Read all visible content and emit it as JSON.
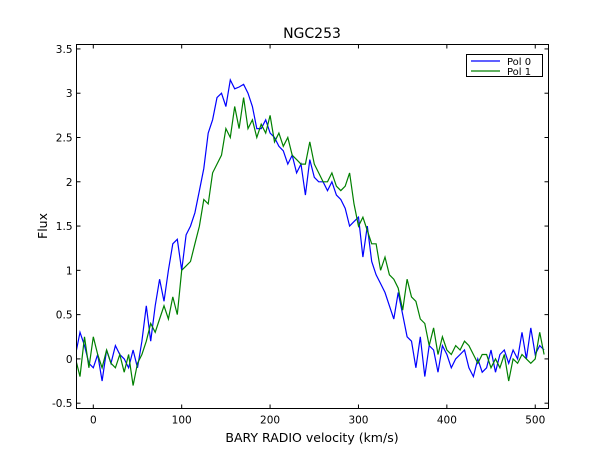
{
  "chart_data": {
    "type": "line",
    "title": "NGC253",
    "xlabel": "BARY RADIO velocity (km/s)",
    "ylabel": "Flux",
    "xlim": [
      -19,
      515
    ],
    "ylim": [
      -0.56,
      3.55
    ],
    "xticks": [
      0,
      100,
      200,
      300,
      400,
      500
    ],
    "xtick_labels": [
      "0",
      "100",
      "200",
      "300",
      "400",
      "500"
    ],
    "yticks": [
      -0.5,
      0,
      0.5,
      1,
      1.5,
      2,
      2.5,
      3,
      3.5
    ],
    "ytick_labels": [
      "-0.5",
      "0",
      "0.5",
      "1",
      "1.5",
      "2",
      "2.5",
      "3",
      "3.5"
    ],
    "grid": false,
    "legend_position": "top-right",
    "x": [
      -20,
      -15,
      -10,
      -5,
      0,
      5,
      10,
      15,
      20,
      25,
      30,
      35,
      40,
      45,
      50,
      55,
      60,
      65,
      70,
      75,
      80,
      85,
      90,
      95,
      100,
      105,
      110,
      115,
      120,
      125,
      130,
      135,
      140,
      145,
      150,
      155,
      160,
      165,
      170,
      175,
      180,
      185,
      190,
      195,
      200,
      205,
      210,
      215,
      220,
      225,
      230,
      235,
      240,
      245,
      250,
      255,
      260,
      265,
      270,
      275,
      280,
      285,
      290,
      295,
      300,
      305,
      310,
      315,
      320,
      325,
      330,
      335,
      340,
      345,
      350,
      355,
      360,
      365,
      370,
      375,
      380,
      385,
      390,
      395,
      400,
      405,
      410,
      415,
      420,
      425,
      430,
      435,
      440,
      445,
      450,
      455,
      460,
      465,
      470,
      475,
      480,
      485,
      490,
      495,
      500,
      505,
      510
    ],
    "series": [
      {
        "name": "Pol 0",
        "color": "#0000ff",
        "values": [
          0.05,
          0.3,
          0.15,
          -0.05,
          -0.1,
          0.05,
          -0.25,
          0.1,
          -0.05,
          0.15,
          0.05,
          0.0,
          -0.1,
          0.1,
          -0.1,
          0.2,
          0.6,
          0.2,
          0.6,
          0.9,
          0.65,
          1.0,
          1.3,
          1.35,
          1.0,
          1.4,
          1.5,
          1.65,
          1.9,
          2.15,
          2.55,
          2.7,
          2.95,
          3.0,
          2.85,
          3.15,
          3.05,
          3.07,
          3.1,
          3.0,
          2.85,
          2.6,
          2.6,
          2.7,
          2.55,
          2.5,
          2.4,
          2.35,
          2.2,
          2.3,
          2.1,
          2.2,
          1.85,
          2.25,
          2.05,
          2.0,
          2.0,
          1.9,
          2.0,
          1.85,
          1.8,
          1.7,
          1.5,
          1.55,
          1.6,
          1.15,
          1.5,
          1.1,
          0.95,
          0.85,
          0.75,
          0.6,
          0.45,
          0.75,
          0.5,
          0.25,
          0.2,
          -0.1,
          0.25,
          -0.2,
          0.15,
          0.1,
          -0.15,
          0.15,
          0.05,
          -0.1,
          0.0,
          0.05,
          0.1,
          -0.1,
          -0.2,
          0.0,
          -0.15,
          -0.1,
          0.1,
          -0.15,
          0.05,
          0.1,
          -0.05,
          0.1,
          0.0,
          0.3,
          0.0,
          0.35,
          0.05,
          0.15,
          0.1
        ]
      },
      {
        "name": "Pol 1",
        "color": "#008000",
        "values": [
          0.0,
          -0.2,
          0.25,
          -0.1,
          0.25,
          0.05,
          -0.1,
          0.1,
          -0.05,
          -0.1,
          0.05,
          -0.15,
          0.05,
          -0.3,
          -0.05,
          0.05,
          0.2,
          0.4,
          0.3,
          0.45,
          0.6,
          0.45,
          0.7,
          0.5,
          1.0,
          1.05,
          1.1,
          1.3,
          1.5,
          1.8,
          1.75,
          2.1,
          2.2,
          2.3,
          2.6,
          2.5,
          2.85,
          2.6,
          2.95,
          2.6,
          2.7,
          2.5,
          2.65,
          2.55,
          2.75,
          2.45,
          2.55,
          2.4,
          2.5,
          2.3,
          2.25,
          2.2,
          2.2,
          2.45,
          2.2,
          2.1,
          2.0,
          2.0,
          2.1,
          1.95,
          1.9,
          1.95,
          2.1,
          1.75,
          1.5,
          1.6,
          1.45,
          1.3,
          1.3,
          1.0,
          1.15,
          0.95,
          0.9,
          0.8,
          0.55,
          0.9,
          0.7,
          0.65,
          0.45,
          0.4,
          0.15,
          0.35,
          0.05,
          0.25,
          0.1,
          0.05,
          0.15,
          0.1,
          0.2,
          0.15,
          0.05,
          -0.05,
          0.05,
          0.05,
          -0.1,
          0.0,
          -0.1,
          0.05,
          -0.25,
          0.0,
          -0.05,
          0.05,
          0.0,
          -0.05,
          0.0,
          0.3,
          0.05
        ]
      }
    ]
  }
}
